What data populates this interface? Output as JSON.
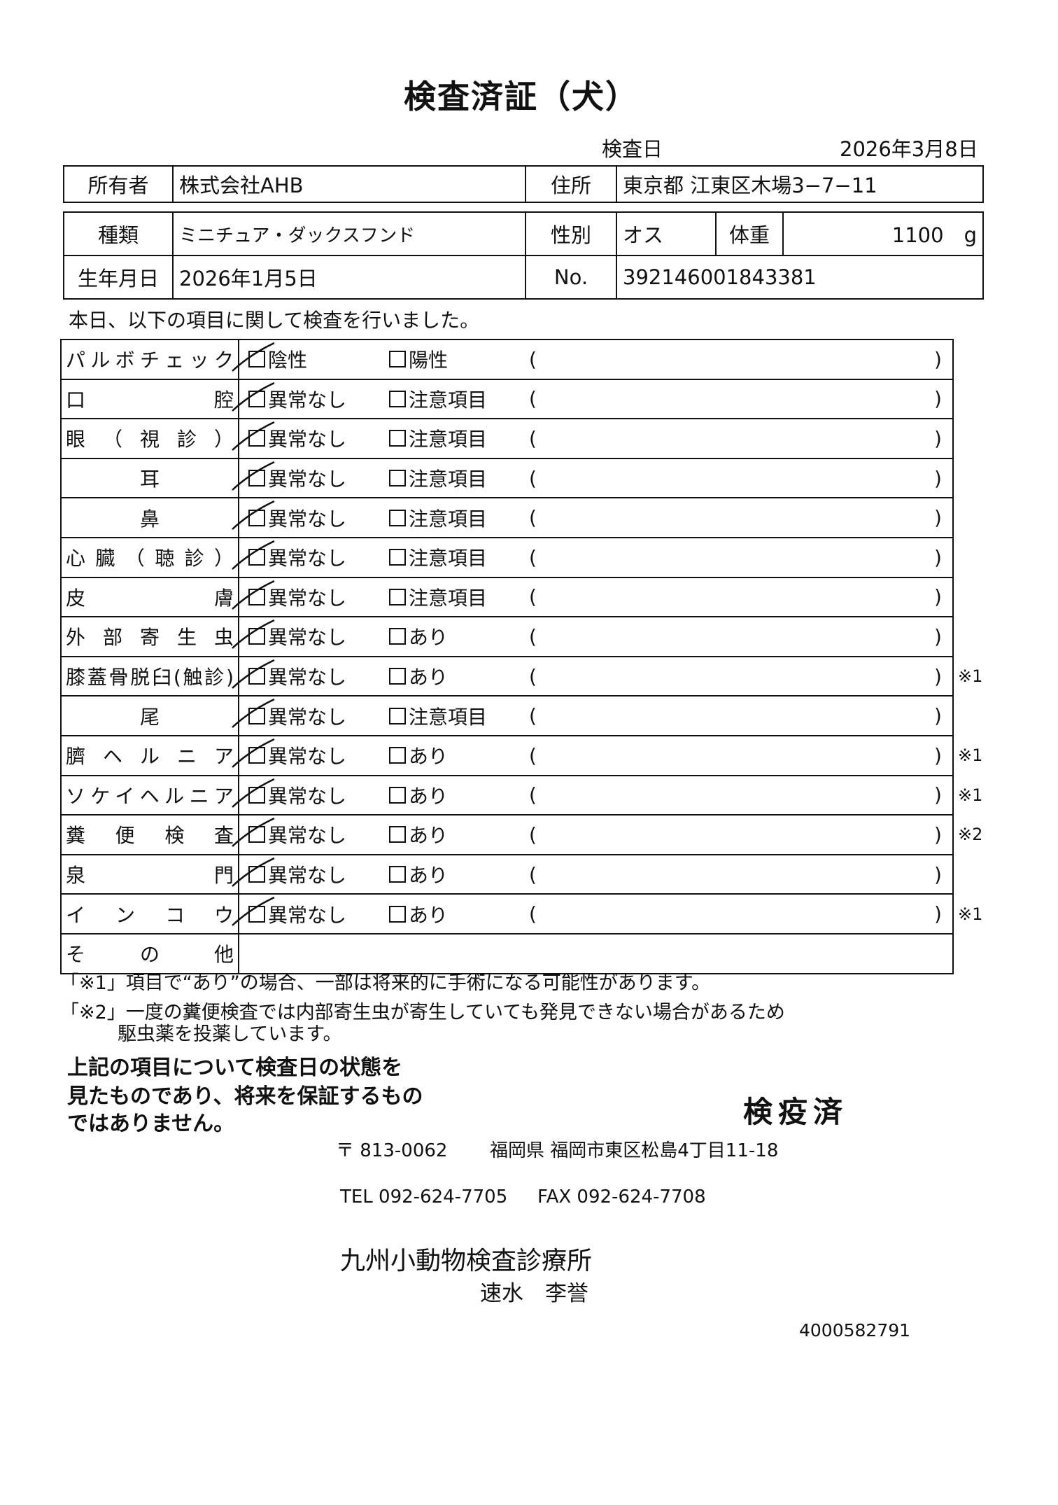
{
  "title": "検査済証（犬）",
  "exam_date": {
    "label": "検査日",
    "value": "2026年3月8日"
  },
  "owner": {
    "label": "所有者",
    "value": "株式会社AHB",
    "address_label": "住所",
    "address": "東京都 江東区木場3−7−11"
  },
  "pet": {
    "breed_label": "種類",
    "breed": "ミニチュア・ダックスフンド",
    "sex_label": "性別",
    "sex": "オス",
    "weight_label": "体重",
    "weight": "1100　g",
    "dob_label": "生年月日",
    "dob": "2026年1月5日",
    "no_label": "No.",
    "no": "392146001843381"
  },
  "intro": "本日、以下の項目に関して検査を行いました。",
  "checklist": [
    {
      "label": "パルボチェック",
      "opt1": "陰性",
      "opt2": "陽性",
      "checked": 1,
      "mark": ""
    },
    {
      "label": "口腔",
      "opt1": "異常なし",
      "opt2": "注意項目",
      "checked": 1,
      "mark": ""
    },
    {
      "label": "眼（視診）",
      "opt1": "異常なし",
      "opt2": "注意項目",
      "checked": 1,
      "mark": ""
    },
    {
      "label": "耳",
      "opt1": "異常なし",
      "opt2": "注意項目",
      "checked": 1,
      "mark": ""
    },
    {
      "label": "鼻",
      "opt1": "異常なし",
      "opt2": "注意項目",
      "checked": 1,
      "mark": ""
    },
    {
      "label": "心臓（聴診）",
      "opt1": "異常なし",
      "opt2": "注意項目",
      "checked": 1,
      "mark": ""
    },
    {
      "label": "皮膚",
      "opt1": "異常なし",
      "opt2": "注意項目",
      "checked": 1,
      "mark": ""
    },
    {
      "label": "外部寄生虫",
      "opt1": "異常なし",
      "opt2": "あり",
      "checked": 1,
      "mark": ""
    },
    {
      "label": "膝蓋骨脱臼(触診)",
      "opt1": "異常なし",
      "opt2": "あり",
      "checked": 1,
      "mark": "※1"
    },
    {
      "label": "尾",
      "opt1": "異常なし",
      "opt2": "注意項目",
      "checked": 1,
      "mark": ""
    },
    {
      "label": "臍ヘルニア",
      "opt1": "異常なし",
      "opt2": "あり",
      "checked": 1,
      "mark": "※1"
    },
    {
      "label": "ソケイヘルニア",
      "opt1": "異常なし",
      "opt2": "あり",
      "checked": 1,
      "mark": "※1"
    },
    {
      "label": "糞便検査",
      "opt1": "異常なし",
      "opt2": "あり",
      "checked": 1,
      "mark": "※2"
    },
    {
      "label": "泉門",
      "opt1": "異常なし",
      "opt2": "あり",
      "checked": 1,
      "mark": ""
    },
    {
      "label": "インコウ",
      "opt1": "異常なし",
      "opt2": "あり",
      "checked": 1,
      "mark": "※1"
    }
  ],
  "other_label": "その他",
  "paren_open": "(",
  "paren_close": ")",
  "notes": [
    "「※1」項目で“あり”の場合、一部は将来的に手術になる可能性があります。",
    "「※2」一度の糞便検査では内部寄生虫が寄生していても発見できない場合があるため",
    "駆虫薬を投薬しています。"
  ],
  "statement": [
    "上記の項目について検査日の状態を",
    "見たものであり、将来を保証するもの",
    "ではありません。"
  ],
  "stamp": "検疫済",
  "clinic": {
    "postal": "〒 813-0062",
    "address": "福岡県 福岡市東区松島4丁目11-18",
    "tel": "TEL 092-624-7705",
    "fax": "FAX 092-624-7708",
    "name": "九州小動物検査診療所",
    "vet": "速水　李誉"
  },
  "doc_number": "4000582791"
}
